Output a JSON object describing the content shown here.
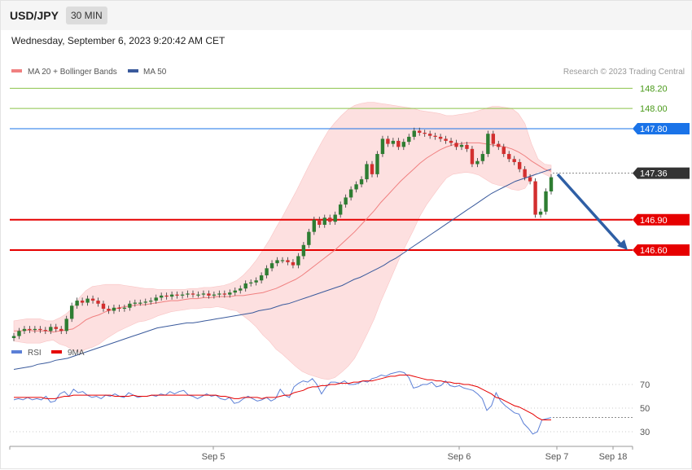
{
  "header": {
    "symbol": "USD/JPY",
    "timeframe": "30 MIN"
  },
  "datetime": "Wednesday, September 6, 2023 9:20:42 AM CET",
  "credit": "Research © 2023 Trading Central",
  "colors": {
    "up": "#2e7d32",
    "down": "#d32f2f",
    "ma20": "#f08080",
    "bands": "#fde0e0",
    "ma50": "#3a5a9c",
    "resistance": "#8bc34a",
    "pivot": "#1a73e8",
    "support": "#e60000",
    "rsi": "#5b7fd6",
    "rsi_ma": "#e60000",
    "arrow": "#2f5fa5",
    "current": "#333333"
  },
  "chart_data": [
    {
      "type": "candlestick",
      "title": "",
      "legend": [
        "MA 20 + Bollinger Bands",
        "MA 50"
      ],
      "legend_position": "top-left",
      "ylim": [
        145.4,
        148.3
      ],
      "levels": [
        {
          "value": 148.2,
          "label": "148.20",
          "kind": "resistance"
        },
        {
          "value": 148.0,
          "label": "148.00",
          "kind": "resistance"
        },
        {
          "value": 147.8,
          "label": "147.80",
          "kind": "pivot"
        },
        {
          "value": 147.36,
          "label": "147.36",
          "kind": "current"
        },
        {
          "value": 146.9,
          "label": "146.90",
          "kind": "support"
        },
        {
          "value": 146.6,
          "label": "146.60",
          "kind": "support"
        }
      ],
      "close": [
        145.75,
        145.8,
        145.82,
        145.81,
        145.82,
        145.81,
        145.8,
        145.84,
        145.82,
        145.8,
        145.92,
        146.05,
        146.1,
        146.08,
        146.12,
        146.1,
        146.07,
        146.02,
        146.0,
        146.03,
        146.02,
        146.03,
        146.07,
        146.08,
        146.08,
        146.09,
        146.1,
        146.13,
        146.15,
        146.14,
        146.16,
        146.15,
        146.16,
        146.17,
        146.16,
        146.16,
        146.17,
        146.15,
        146.16,
        146.17,
        146.16,
        146.18,
        146.2,
        146.22,
        146.27,
        146.28,
        146.3,
        146.35,
        146.42,
        146.47,
        146.5,
        146.5,
        146.48,
        146.45,
        146.54,
        146.65,
        146.78,
        146.9,
        146.85,
        146.92,
        146.88,
        146.95,
        147.05,
        147.12,
        147.2,
        147.25,
        147.3,
        147.45,
        147.35,
        147.55,
        147.7,
        147.65,
        147.68,
        147.62,
        147.67,
        147.72,
        147.78,
        147.76,
        147.75,
        147.73,
        147.72,
        147.7,
        147.68,
        147.66,
        147.62,
        147.64,
        147.6,
        147.45,
        147.48,
        147.55,
        147.75,
        147.65,
        147.62,
        147.55,
        147.5,
        147.47,
        147.4,
        147.32,
        147.28,
        146.95,
        146.98,
        147.18,
        147.32
      ],
      "ma20": [
        145.8,
        145.8,
        145.81,
        145.8,
        145.8,
        145.8,
        145.79,
        145.8,
        145.81,
        145.82,
        145.86,
        145.91,
        145.94,
        145.96,
        145.99,
        146.01,
        146.03,
        146.04,
        146.05,
        146.06,
        146.06,
        146.07,
        146.08,
        146.09,
        146.1,
        146.1,
        146.11,
        146.12,
        146.12,
        146.13,
        146.13,
        146.14,
        146.14,
        146.14,
        146.15,
        146.15,
        146.16,
        146.17,
        146.18,
        146.2,
        146.22,
        146.25,
        146.28,
        146.31,
        146.35,
        146.4,
        146.45,
        146.5,
        146.55,
        146.6,
        146.66,
        146.72,
        146.78,
        146.85,
        146.92,
        146.99,
        147.07,
        147.14,
        147.21,
        147.28,
        147.34,
        147.4,
        147.46,
        147.51,
        147.55,
        147.59,
        147.62,
        147.64,
        147.65,
        147.66,
        147.66,
        147.66,
        147.65,
        147.64,
        147.63,
        147.62,
        147.6,
        147.57,
        147.53,
        147.48,
        147.44,
        147.4,
        147.38
      ],
      "bb_upper": [
        145.9,
        145.91,
        145.92,
        145.92,
        145.92,
        145.9,
        145.9,
        145.93,
        145.97,
        146.03,
        146.13,
        146.2,
        146.24,
        146.25,
        146.26,
        146.26,
        146.26,
        146.25,
        146.24,
        146.23,
        146.22,
        146.22,
        146.21,
        146.21,
        146.21,
        146.21,
        146.21,
        146.22,
        146.22,
        146.23,
        146.23,
        146.24,
        146.25,
        146.27,
        146.3,
        146.35,
        146.42,
        146.5,
        146.6,
        146.7,
        146.82,
        146.93,
        147.05,
        147.17,
        147.3,
        147.43,
        147.55,
        147.67,
        147.78,
        147.86,
        147.93,
        147.99,
        148.03,
        148.05,
        148.06,
        148.06,
        148.05,
        148.04,
        148.03,
        148.02,
        148.01,
        148.0,
        147.98,
        147.97,
        147.96,
        147.95,
        147.93,
        147.93,
        147.94,
        147.95,
        147.96,
        147.98,
        148.0,
        148.02,
        148.02,
        148.01,
        148.0,
        147.95,
        147.85,
        147.65,
        147.5,
        147.45,
        147.44
      ],
      "bb_lower": [
        145.7,
        145.69,
        145.68,
        145.68,
        145.68,
        145.7,
        145.71,
        145.67,
        145.65,
        145.61,
        145.59,
        145.62,
        145.64,
        145.67,
        145.72,
        145.76,
        145.8,
        145.83,
        145.86,
        145.89,
        145.9,
        145.92,
        145.95,
        145.97,
        145.99,
        146.0,
        146.01,
        146.02,
        146.02,
        146.03,
        146.03,
        146.04,
        146.03,
        146.01,
        146.0,
        145.95,
        145.9,
        145.84,
        145.76,
        145.7,
        145.62,
        145.57,
        145.51,
        145.45,
        145.4,
        145.37,
        145.35,
        145.33,
        145.32,
        145.34,
        145.39,
        145.45,
        145.53,
        145.65,
        145.78,
        145.92,
        146.09,
        146.24,
        146.39,
        146.54,
        146.67,
        146.8,
        146.94,
        147.05,
        147.14,
        147.23,
        147.31,
        147.35,
        147.36,
        147.37,
        147.36,
        147.34,
        147.3,
        147.26,
        147.24,
        147.23,
        147.2,
        147.19,
        147.21,
        147.31,
        147.38,
        147.35,
        147.32
      ],
      "ma50": [
        145.42,
        145.43,
        145.44,
        145.45,
        145.47,
        145.48,
        145.49,
        145.51,
        145.52,
        145.53,
        145.55,
        145.57,
        145.59,
        145.61,
        145.63,
        145.65,
        145.67,
        145.69,
        145.71,
        145.73,
        145.75,
        145.77,
        145.79,
        145.81,
        145.83,
        145.84,
        145.85,
        145.86,
        145.87,
        145.88,
        145.88,
        145.89,
        145.9,
        145.91,
        145.92,
        145.93,
        145.94,
        145.95,
        145.96,
        145.97,
        145.98,
        146.0,
        146.01,
        146.02,
        146.04,
        146.06,
        146.07,
        146.09,
        146.11,
        146.13,
        146.15,
        146.17,
        146.19,
        146.21,
        146.23,
        146.25,
        146.28,
        146.31,
        146.33,
        146.36,
        146.39,
        146.42,
        146.45,
        146.49,
        146.52,
        146.56,
        146.6,
        146.64,
        146.68,
        146.72,
        146.76,
        146.8,
        146.84,
        146.88,
        146.92,
        146.96,
        147.0,
        147.04,
        147.08,
        147.12,
        147.16,
        147.19,
        147.22,
        147.25,
        147.28,
        147.3,
        147.32,
        147.34,
        147.36,
        147.38,
        147.4
      ]
    },
    {
      "type": "line",
      "title": "",
      "legend": [
        "RSI",
        "9MA"
      ],
      "ylim": [
        20,
        85
      ],
      "yticks": [
        30,
        50,
        70
      ],
      "series": [
        {
          "name": "RSI",
          "values": [
            57,
            58,
            57,
            59,
            57,
            58,
            57,
            60,
            55,
            56,
            62,
            64,
            60,
            66,
            63,
            64,
            61,
            59,
            60,
            58,
            61,
            60,
            62,
            60,
            59,
            63,
            61,
            59,
            60,
            60,
            61,
            60,
            62,
            61,
            64,
            62,
            64,
            65,
            61,
            60,
            58,
            60,
            62,
            60,
            61,
            58,
            57,
            59,
            54,
            55,
            58,
            60,
            58,
            56,
            57,
            59,
            56,
            58,
            66,
            61,
            59,
            68,
            71,
            73,
            72,
            75,
            70,
            62,
            68,
            72,
            72,
            71,
            73,
            70,
            70,
            71,
            73,
            72,
            75,
            76,
            78,
            77,
            79,
            80,
            81,
            80,
            76,
            67,
            68,
            70,
            70,
            72,
            68,
            69,
            73,
            69,
            68,
            69,
            67,
            66,
            65,
            62,
            58,
            48,
            52,
            63,
            56,
            52,
            49,
            46,
            45,
            37,
            33,
            28,
            30,
            40,
            41,
            42
          ]
        },
        {
          "name": "9MA",
          "values": [
            59,
            59,
            59,
            59,
            59,
            59,
            59,
            58,
            58,
            58,
            59,
            60,
            60,
            61,
            61,
            61,
            61,
            61,
            61,
            61,
            61,
            61,
            60,
            60,
            60,
            60,
            61,
            60,
            60,
            60,
            61,
            61,
            61,
            61,
            61,
            61,
            61,
            61,
            61,
            61,
            61,
            61,
            61,
            61,
            61,
            60,
            60,
            59,
            58,
            58,
            59,
            59,
            59,
            59,
            58,
            59,
            59,
            59,
            60,
            61,
            61,
            63,
            64,
            65,
            67,
            68,
            68,
            69,
            69,
            70,
            70,
            71,
            71,
            71,
            72,
            72,
            73,
            73,
            73,
            74,
            75,
            76,
            77,
            77,
            78,
            78,
            78,
            77,
            76,
            75,
            74,
            74,
            73,
            73,
            72,
            72,
            71,
            71,
            70,
            70,
            69,
            68,
            66,
            64,
            62,
            59,
            58,
            56,
            54,
            52,
            51,
            49,
            47,
            45,
            42,
            40,
            40,
            40
          ]
        }
      ]
    }
  ],
  "x_labels": [
    "Sep 5",
    "Sep 6",
    "Sep 7",
    "Sep 18"
  ]
}
